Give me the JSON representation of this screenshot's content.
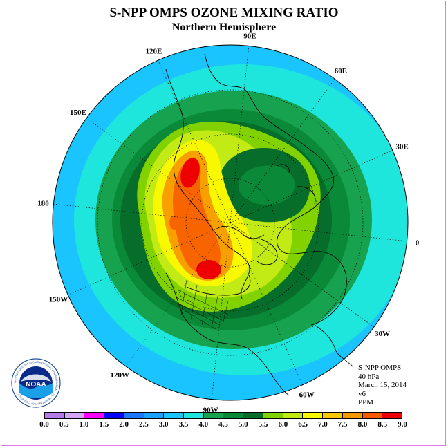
{
  "header": {
    "title": "S-NPP OMPS OZONE MIXING RATIO",
    "subtitle": "Northern Hemisphere"
  },
  "longitude_labels": [
    "90E",
    "60E",
    "30E",
    "0",
    "30W",
    "60W",
    "90W",
    "120W",
    "150W",
    "180",
    "150E",
    "120E"
  ],
  "info": {
    "instrument": "S-NPP OMPS",
    "level": "40 hPa",
    "date": "March 15, 2014",
    "version": "v6",
    "units": "PPM"
  },
  "logo": {
    "text": "NOAA",
    "ring_text": "NATIONAL OCEANIC AND ATMOSPHERIC ADMINISTRATION · U.S. DEPARTMENT OF COMMERCE"
  },
  "colorbar": {
    "ticks": [
      "0.0",
      "0.5",
      "1.0",
      "1.5",
      "2.0",
      "2.5",
      "3.0",
      "3.5",
      "4.0",
      "4.5",
      "5.0",
      "5.5",
      "6.0",
      "6.5",
      "7.0",
      "7.5",
      "8.0",
      "8.5",
      "9.0"
    ],
    "colors": [
      "#b57ce8",
      "#d2a8f5",
      "#ff00ff",
      "#0000ff",
      "#1e78ff",
      "#19a2ff",
      "#19c4ff",
      "#1ee6dc",
      "#16a24e",
      "#0a8a38",
      "#066e2a",
      "#82d200",
      "#c2ea14",
      "#f8f800",
      "#f8c800",
      "#f89800",
      "#f85a00",
      "#ee0000",
      "#8c5a3c"
    ]
  },
  "map_colors": {
    "outer": "#19c4ff",
    "teal": "#1ee6dc",
    "green1": "#16a24e",
    "green2": "#0a8a38",
    "green3": "#066e2a",
    "lime": "#82d200",
    "yellowgreen": "#c2ea14",
    "yellow": "#f8f800",
    "orange": "#f8a000",
    "darkorange": "#f86400",
    "red": "#ee0000"
  }
}
